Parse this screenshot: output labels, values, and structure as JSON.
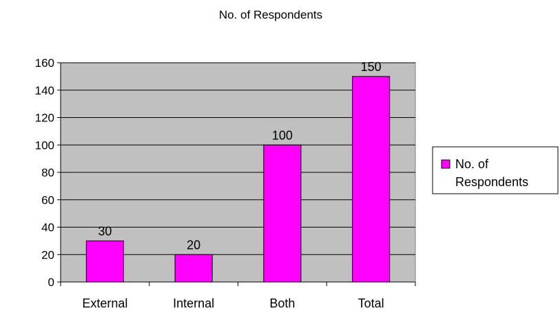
{
  "chart_data": {
    "type": "bar",
    "title": "No. of Respondents",
    "categories": [
      "External",
      "Internal",
      "Both",
      "Total"
    ],
    "series": [
      {
        "name": "No. of Respondents",
        "values": [
          30,
          20,
          100,
          150
        ]
      }
    ],
    "data_labels": [
      "30",
      "20",
      "100",
      "150"
    ],
    "ylim": [
      0,
      160
    ],
    "yticks": [
      0,
      20,
      40,
      60,
      80,
      100,
      120,
      140,
      160
    ],
    "grid": true,
    "plot_background": "#c0c0c0",
    "bar_color": "#ff00ff",
    "legend": {
      "position": "right",
      "label_lines": [
        "No. of",
        "Respondents"
      ]
    }
  }
}
